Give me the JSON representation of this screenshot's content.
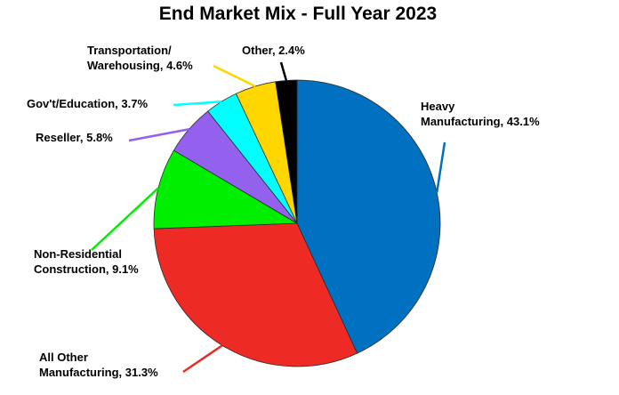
{
  "chart_data": {
    "type": "pie",
    "title": "End Market Mix - Full Year 2023",
    "slices": [
      {
        "label_lines": [
          "Heavy",
          "Manufacturing, 43.1%"
        ],
        "category": "Heavy Manufacturing",
        "value": 43.1,
        "color": "#0070C0"
      },
      {
        "label_lines": [
          "All Other",
          "Manufacturing, 31.3%"
        ],
        "category": "All Other Manufacturing",
        "value": 31.3,
        "color": "#EE2A24"
      },
      {
        "label_lines": [
          "Non-Residential",
          "Construction, 9.1%"
        ],
        "category": "Non-Residential Construction",
        "value": 9.1,
        "color": "#00EE00"
      },
      {
        "label_lines": [
          "Reseller, 5.8%"
        ],
        "category": "Reseller",
        "value": 5.8,
        "color": "#9460EE"
      },
      {
        "label_lines": [
          "Gov't/Education, 3.7%"
        ],
        "category": "Gov't/Education",
        "value": 3.7,
        "color": "#00FFFF"
      },
      {
        "label_lines": [
          "Transportation/",
          "Warehousing, 4.6%"
        ],
        "category": "Transportation/Warehousing",
        "value": 4.6,
        "color": "#FFD700"
      },
      {
        "label_lines": [
          "Other, 2.4%"
        ],
        "category": "Other",
        "value": 2.4,
        "color": "#000000"
      }
    ]
  }
}
